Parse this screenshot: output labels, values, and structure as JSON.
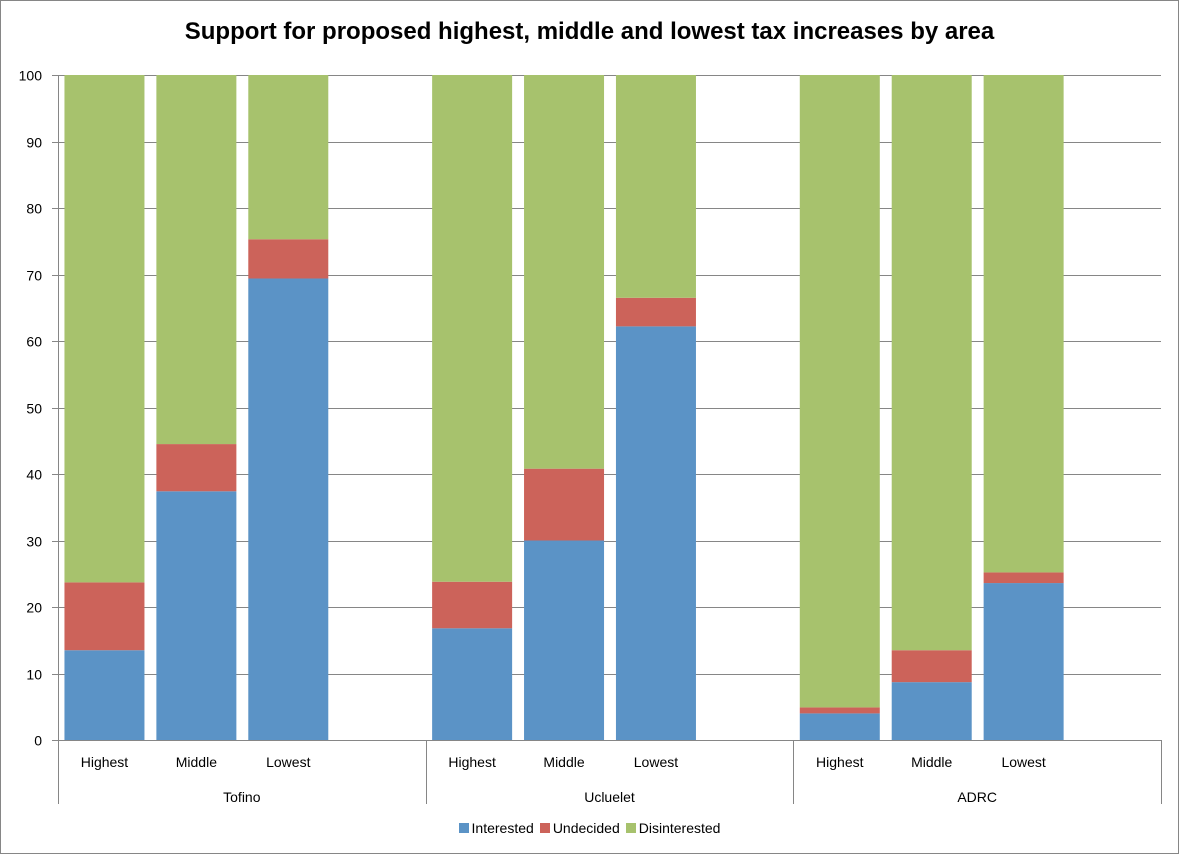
{
  "chart_data": {
    "type": "bar",
    "stacked": true,
    "title": "Support for proposed  highest, middle and lowest tax increases by area",
    "xlabel": "",
    "ylabel": "",
    "ylim": [
      0,
      100
    ],
    "yticks": [
      "0",
      "10",
      "20",
      "30",
      "40",
      "50",
      "60",
      "70",
      "80",
      "90",
      "100"
    ],
    "grid": true,
    "legend_position": "bottom",
    "groups": [
      {
        "name": "Tofino",
        "categories": [
          "Highest",
          "Middle",
          "Lowest"
        ]
      },
      {
        "name": "Ucluelet",
        "categories": [
          "Highest",
          "Middle",
          "Lowest"
        ]
      },
      {
        "name": "ADRC",
        "categories": [
          "Highest",
          "Middle",
          "Lowest"
        ]
      }
    ],
    "series": [
      {
        "name": "Interested",
        "color": "#5B93C6",
        "values": [
          [
            13.5,
            37.4,
            69.4
          ],
          [
            16.8,
            30.0,
            62.2
          ],
          [
            4.0,
            8.7,
            23.6
          ]
        ]
      },
      {
        "name": "Undecided",
        "color": "#CC635A",
        "values": [
          [
            10.2,
            7.1,
            5.9
          ],
          [
            7.0,
            10.8,
            4.3
          ],
          [
            0.9,
            4.8,
            1.6
          ]
        ]
      },
      {
        "name": "Disinterested",
        "color": "#A7C26D",
        "values": [
          [
            76.3,
            55.5,
            24.7
          ],
          [
            76.2,
            59.2,
            33.5
          ],
          [
            95.1,
            86.5,
            74.8
          ]
        ]
      }
    ]
  }
}
